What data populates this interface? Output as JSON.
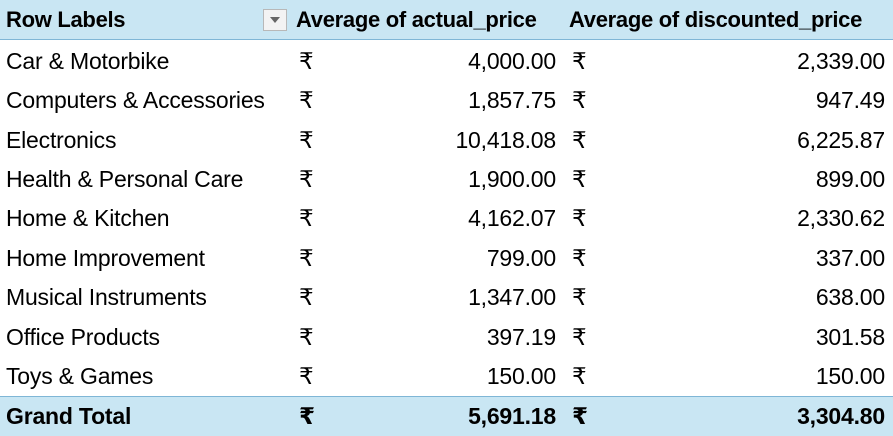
{
  "header": {
    "row_labels": "Row Labels",
    "col1": "Average of actual_price",
    "col2": "Average of discounted_price",
    "filter_icon": "chevron-down-icon"
  },
  "currency_symbol": "₹",
  "rows": [
    {
      "label": "Car & Motorbike",
      "actual": "4,000.00",
      "discounted": "2,339.00"
    },
    {
      "label": "Computers & Accessories",
      "actual": "1,857.75",
      "discounted": "947.49"
    },
    {
      "label": "Electronics",
      "actual": "10,418.08",
      "discounted": "6,225.87"
    },
    {
      "label": "Health & Personal Care",
      "actual": "1,900.00",
      "discounted": "899.00"
    },
    {
      "label": "Home & Kitchen",
      "actual": "4,162.07",
      "discounted": "2,330.62"
    },
    {
      "label": "Home Improvement",
      "actual": "799.00",
      "discounted": "337.00"
    },
    {
      "label": "Musical Instruments",
      "actual": "1,347.00",
      "discounted": "638.00"
    },
    {
      "label": "Office Products",
      "actual": "397.19",
      "discounted": "301.58"
    },
    {
      "label": "Toys & Games",
      "actual": "150.00",
      "discounted": "150.00"
    }
  ],
  "grand_total": {
    "label": "Grand Total",
    "actual": "5,691.18",
    "discounted": "3,304.80"
  },
  "colors": {
    "header_fill": "#c9e6f3",
    "header_border": "#7fb6d6"
  }
}
